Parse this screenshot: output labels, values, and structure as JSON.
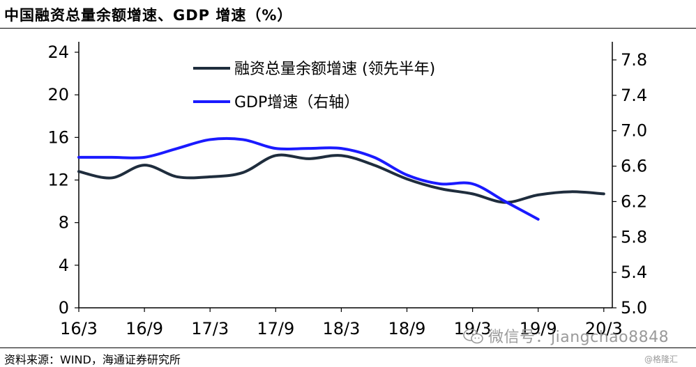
{
  "title": "中国融资总量余额增速、GDP 增速（%）",
  "source": "资料来源：WIND，海通证券研究所",
  "watermark": "微信号：jiangchao8848",
  "brand": "@格隆汇",
  "chart_data": {
    "type": "line",
    "x_ticks": [
      "16/3",
      "16/9",
      "17/3",
      "17/9",
      "18/3",
      "18/9",
      "19/3",
      "19/9",
      "20/3"
    ],
    "y_left": {
      "ticks": [
        "0",
        "4",
        "8",
        "12",
        "16",
        "20",
        "24"
      ],
      "lim": [
        0,
        24
      ]
    },
    "y_right": {
      "ticks": [
        "5.0",
        "5.4",
        "5.8",
        "6.2",
        "6.6",
        "7.0",
        "7.4",
        "7.8"
      ],
      "lim": [
        5.0,
        7.9
      ]
    },
    "legend_position": "top-left",
    "series": [
      {
        "name": "融资总量余额增速 (领先半年)",
        "axis": "left",
        "color": "#1f2d3d",
        "x": [
          0,
          0.5,
          1,
          1.5,
          2,
          2.5,
          3,
          3.5,
          4,
          4.5,
          5,
          5.5,
          6,
          6.5,
          7,
          7.5,
          8
        ],
        "values": [
          12.8,
          12.2,
          13.4,
          12.3,
          12.3,
          12.7,
          14.3,
          14.0,
          14.3,
          13.4,
          12.1,
          11.2,
          10.7,
          9.9,
          10.6,
          10.9,
          10.7
        ]
      },
      {
        "name": "GDP增速（右轴）",
        "axis": "right",
        "color": "#1a1aff",
        "x": [
          0,
          0.5,
          1,
          1.5,
          2,
          2.5,
          3,
          3.5,
          4,
          4.5,
          5,
          5.5,
          6,
          6.5,
          7
        ],
        "values": [
          6.7,
          6.7,
          6.7,
          6.8,
          6.9,
          6.9,
          6.8,
          6.8,
          6.8,
          6.7,
          6.5,
          6.4,
          6.4,
          6.2,
          6.0
        ]
      }
    ]
  }
}
